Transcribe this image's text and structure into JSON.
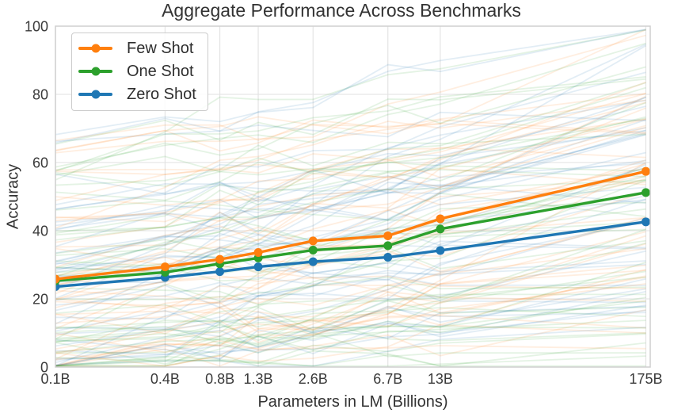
{
  "chart_data": {
    "type": "line",
    "title": "Aggregate Performance Across Benchmarks",
    "xlabel": "Parameters in LM (Billions)",
    "ylabel": "Accuracy",
    "x_scale": "log",
    "x_values": [
      0.1,
      0.4,
      0.8,
      1.3,
      2.6,
      6.7,
      13,
      175
    ],
    "x_ticklabels": [
      "0.1B",
      "0.4B",
      "0.8B",
      "1.3B",
      "2.6B",
      "6.7B",
      "13B",
      "175B"
    ],
    "y_ticks": [
      0,
      20,
      40,
      60,
      80,
      100
    ],
    "y_ticklabels": [
      "0",
      "20",
      "40",
      "60",
      "80",
      "100"
    ],
    "ylim": [
      0,
      100
    ],
    "xlim": [
      0.1,
      185
    ],
    "grid": true,
    "legend_position": "upper left",
    "series": [
      {
        "name": "Few Shot",
        "color": "#ff7f0e",
        "values": [
          25.8,
          29.4,
          31.6,
          33.6,
          37.0,
          38.5,
          43.5,
          57.4
        ]
      },
      {
        "name": "One Shot",
        "color": "#2ca02c",
        "values": [
          25.3,
          27.8,
          30.3,
          32.0,
          34.3,
          35.6,
          40.5,
          51.2
        ]
      },
      {
        "name": "Zero Shot",
        "color": "#1f77b4",
        "values": [
          23.6,
          26.3,
          28.0,
          29.4,
          30.9,
          32.2,
          34.2,
          42.6
        ]
      }
    ],
    "background_lines": {
      "description": "faint individual-benchmark curves, one bundle per series color",
      "per_series_count": 44,
      "opacity": 0.13,
      "stroke_width": 1.8,
      "seed": 11
    },
    "style": {
      "grid_color": "#e2e2e2",
      "spine_color": "#cfcfcf",
      "tick_text_color": "#3a3a3a",
      "title_color": "#333333"
    }
  }
}
